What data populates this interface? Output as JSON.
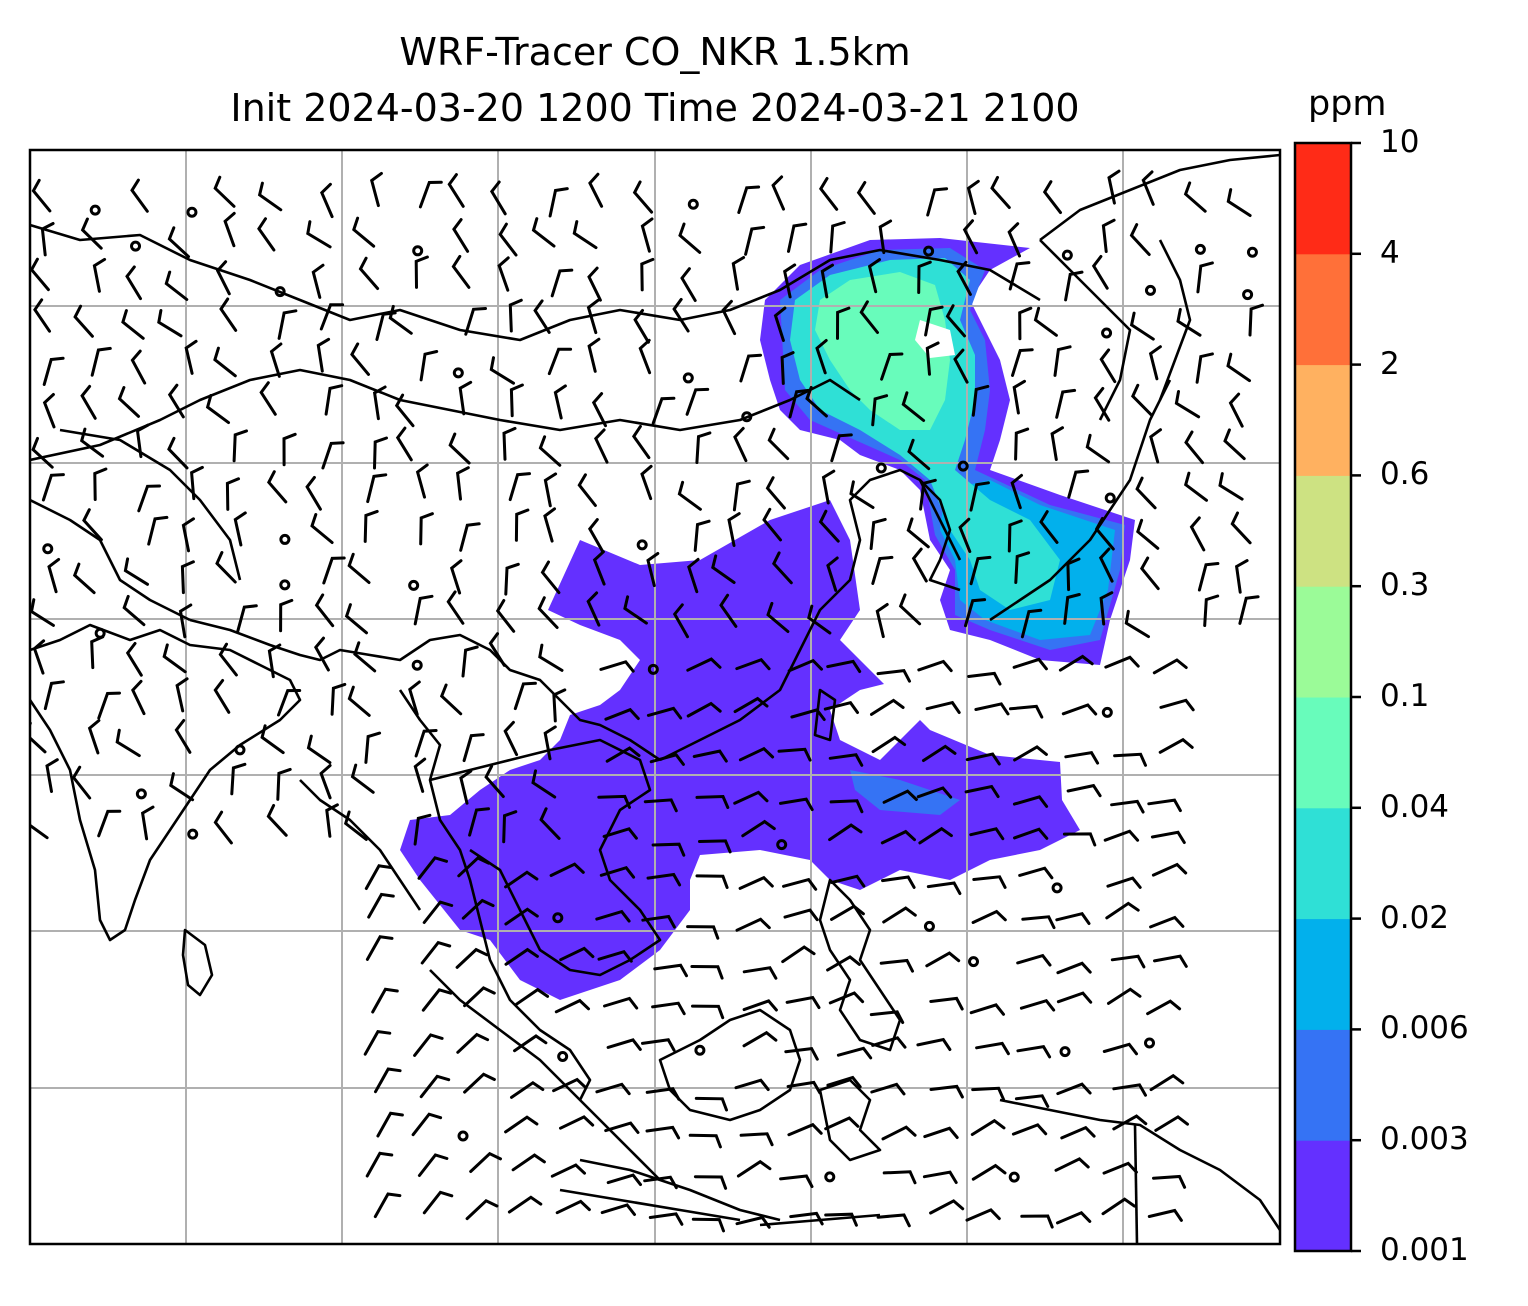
{
  "title": {
    "line1": "WRF-Tracer CO_NKR 1.5km",
    "line2": "Init 2024-03-20 1200 Time 2024-03-21 2100"
  },
  "colorbar": {
    "unit": "ppm",
    "levels": [
      "0.001",
      "0.003",
      "0.006",
      "0.02",
      "0.04",
      "0.1",
      "0.3",
      "0.6",
      "2",
      "4",
      "10"
    ],
    "colors": [
      "#6430ff",
      "#3573f4",
      "#02b0ec",
      "#2fe0d6",
      "#68fcbb",
      "#9bfb98",
      "#cde282",
      "#ffb160",
      "#ff7039",
      "#ff2b17"
    ]
  },
  "map": {
    "gridlines": true,
    "coastline_color": "#000000",
    "grid_color": "#b0b0b0"
  },
  "chart_data": {
    "type": "heatmap",
    "title": "WRF-Tracer CO_NKR 1.5km / Init 2024-03-20 1200 Time 2024-03-21 2100",
    "variable": "CO_NKR",
    "unit": "ppm",
    "contour_levels": [
      0.001,
      0.003,
      0.006,
      0.02,
      0.04,
      0.1,
      0.3,
      0.6,
      2,
      4,
      10
    ],
    "overlays": [
      "wind barbs",
      "coastlines",
      "country borders",
      "gridlines"
    ]
  }
}
